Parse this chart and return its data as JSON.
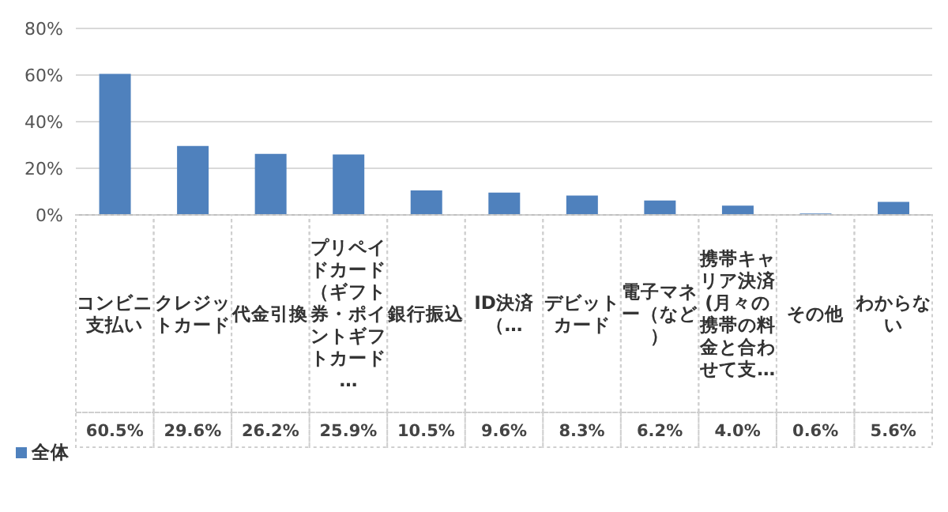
{
  "chart_data": {
    "type": "bar",
    "categories": [
      "コンビニ支払い",
      "クレジットカード",
      "代金引換",
      "プリペイドカード（ギフト券・ポイントギフトカード…",
      "銀行振込",
      "ID決済（…",
      "デビットカード",
      "電子マネー（など）",
      "携帯キャリア決済(月々の携帯の料金と合わせて支…",
      "その他",
      "わからない"
    ],
    "series": [
      {
        "name": "全体",
        "color": "#4f81bd",
        "values": [
          60.5,
          29.6,
          26.2,
          25.9,
          10.5,
          9.6,
          8.3,
          6.2,
          4.0,
          0.6,
          5.6
        ],
        "value_labels": [
          "60.5%",
          "29.6%",
          "26.2%",
          "25.9%",
          "10.5%",
          "9.6%",
          "8.3%",
          "6.2%",
          "4.0%",
          "0.6%",
          "5.6%"
        ]
      }
    ],
    "ylim": [
      0,
      80
    ],
    "yticks": [
      {
        "value": 0,
        "label": "0%"
      },
      {
        "value": 20,
        "label": "20%"
      },
      {
        "value": 40,
        "label": "40%"
      },
      {
        "value": 60,
        "label": "60%"
      },
      {
        "value": 80,
        "label": "80%"
      }
    ],
    "grid": "y",
    "legend": "bottom"
  }
}
